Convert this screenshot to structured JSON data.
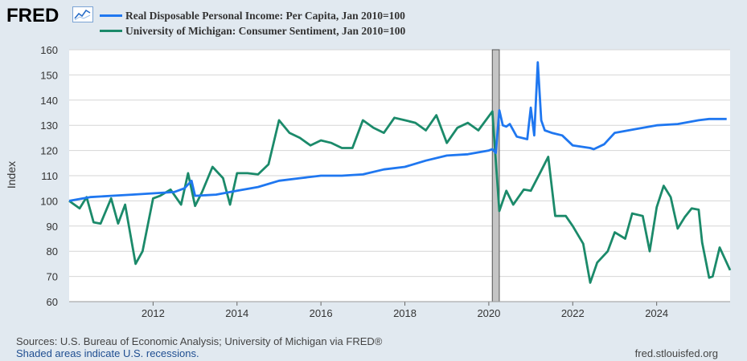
{
  "logo": {
    "text": "FRED",
    "icon": "chart-line-icon"
  },
  "colors": {
    "income": "#1f77f0",
    "sentiment": "#1b8a6a",
    "recession": "#c5c5c5",
    "background": "#e1e9f0",
    "plot": "#ffffff"
  },
  "footer": {
    "source": "Sources: U.S. Bureau of Economic Analysis; University of Michigan via FRED®",
    "shaded": "Shaded areas indicate U.S. recessions.",
    "site": "fred.stlouisfed.org"
  },
  "chart_data": {
    "type": "line",
    "ylabel": "Index",
    "xlabel": "",
    "ylim": [
      60,
      160
    ],
    "xlim": [
      "2010-01",
      "2025-10"
    ],
    "yticks": [
      60,
      70,
      80,
      90,
      100,
      110,
      120,
      130,
      140,
      150,
      160
    ],
    "xticks": [
      "2012",
      "2014",
      "2016",
      "2018",
      "2020",
      "2022",
      "2024"
    ],
    "grid": "horizontal",
    "legend_position": "top-left",
    "recessions": [
      {
        "start": "2020-02",
        "end": "2020-04"
      }
    ],
    "series": [
      {
        "name": "Real Disposable Personal Income: Per Capita, Jan 2010=100",
        "color": "#1f77f0",
        "x": [
          "2010-01",
          "2010-07",
          "2011-01",
          "2011-07",
          "2012-01",
          "2012-07",
          "2012-10",
          "2012-12",
          "2013-01",
          "2013-07",
          "2014-01",
          "2014-07",
          "2015-01",
          "2015-07",
          "2016-01",
          "2016-07",
          "2017-01",
          "2017-07",
          "2018-01",
          "2018-07",
          "2019-01",
          "2019-07",
          "2020-01",
          "2020-02",
          "2020-03",
          "2020-04",
          "2020-05",
          "2020-06",
          "2020-07",
          "2020-09",
          "2020-12",
          "2021-01",
          "2021-02",
          "2021-03",
          "2021-04",
          "2021-05",
          "2021-07",
          "2021-10",
          "2022-01",
          "2022-06",
          "2022-07",
          "2022-10",
          "2023-01",
          "2023-07",
          "2024-01",
          "2024-07",
          "2025-01",
          "2025-04",
          "2025-06",
          "2025-09"
        ],
        "values": [
          100.0,
          101.5,
          102.0,
          102.5,
          103.0,
          103.5,
          105.0,
          108.0,
          102.0,
          102.5,
          104.0,
          105.5,
          108.0,
          109.0,
          110.0,
          110.0,
          110.5,
          112.5,
          113.5,
          116.0,
          118.0,
          118.5,
          120.0,
          120.5,
          119.0,
          136.0,
          130.0,
          129.5,
          130.5,
          125.5,
          124.5,
          137.0,
          126.0,
          155.0,
          132.0,
          128.0,
          127.0,
          126.0,
          122.0,
          121.0,
          120.5,
          122.5,
          127.0,
          128.5,
          130.0,
          130.5,
          132.0,
          132.5,
          132.5,
          132.5
        ]
      },
      {
        "name": "University of Michigan: Consumer Sentiment, Jan 2010=100",
        "color": "#1b8a6a",
        "x": [
          "2010-01",
          "2010-04",
          "2010-06",
          "2010-08",
          "2010-10",
          "2011-01",
          "2011-03",
          "2011-05",
          "2011-08",
          "2011-10",
          "2012-01",
          "2012-03",
          "2012-06",
          "2012-09",
          "2012-11",
          "2013-01",
          "2013-03",
          "2013-06",
          "2013-09",
          "2013-11",
          "2014-01",
          "2014-04",
          "2014-07",
          "2014-10",
          "2015-01",
          "2015-04",
          "2015-07",
          "2015-10",
          "2016-01",
          "2016-04",
          "2016-07",
          "2016-10",
          "2017-01",
          "2017-04",
          "2017-07",
          "2017-10",
          "2018-01",
          "2018-04",
          "2018-07",
          "2018-10",
          "2019-01",
          "2019-04",
          "2019-07",
          "2019-10",
          "2020-02",
          "2020-04",
          "2020-06",
          "2020-08",
          "2020-11",
          "2021-01",
          "2021-04",
          "2021-06",
          "2021-08",
          "2021-11",
          "2022-01",
          "2022-04",
          "2022-06",
          "2022-08",
          "2022-11",
          "2023-01",
          "2023-04",
          "2023-06",
          "2023-09",
          "2023-11",
          "2024-01",
          "2024-03",
          "2024-05",
          "2024-07",
          "2024-09",
          "2024-11",
          "2025-01",
          "2025-02",
          "2025-04",
          "2025-05",
          "2025-07",
          "2025-10"
        ],
        "values": [
          100.0,
          97.0,
          101.5,
          91.5,
          91.0,
          101.0,
          91.0,
          98.5,
          75.0,
          80.0,
          101.0,
          102.0,
          104.5,
          98.5,
          111.0,
          98.0,
          103.5,
          113.5,
          109.0,
          98.5,
          111.0,
          111.0,
          110.5,
          114.5,
          132.0,
          127.0,
          125.0,
          122.0,
          124.0,
          123.0,
          121.0,
          121.0,
          132.0,
          129.0,
          127.0,
          133.0,
          132.0,
          131.0,
          128.0,
          134.0,
          123.0,
          129.0,
          131.0,
          128.0,
          135.5,
          96.0,
          104.0,
          98.5,
          104.5,
          104.0,
          112.0,
          117.5,
          94.0,
          94.0,
          90.0,
          83.0,
          67.5,
          75.5,
          80.0,
          87.5,
          85.0,
          95.0,
          94.0,
          80.0,
          97.5,
          106.0,
          101.5,
          89.0,
          93.5,
          97.0,
          96.5,
          83.5,
          69.5,
          70.0,
          81.5,
          72.5
        ]
      }
    ]
  }
}
